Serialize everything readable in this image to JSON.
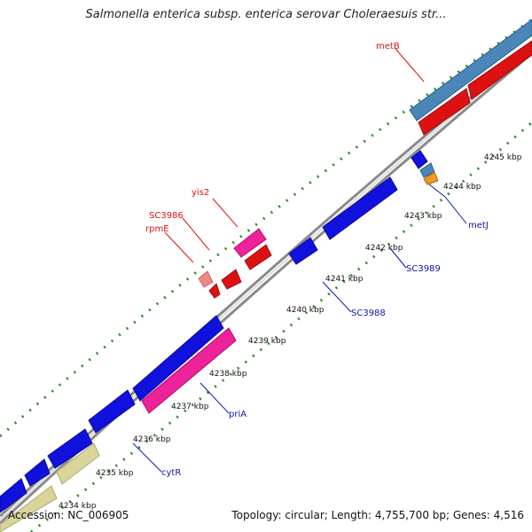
{
  "title": "Salmonella enterica subsp. enterica serovar Choleraesuis str...",
  "footer": {
    "accession": "Accession: NC_006905",
    "stats": "Topology: circular; Length: 4,755,700 bp; Genes: 4,516"
  },
  "scale_labels": [
    "4234 kbp",
    "4235 kbp",
    "4236 kbp",
    "4237 kbp",
    "4238 kbp",
    "4239 kbp",
    "4240 kbp",
    "4241 kbp",
    "4242 kbp",
    "4243 kbp",
    "4244 kbp",
    "4245 kbp"
  ],
  "gene_labels": {
    "metB": "metB",
    "yis2": "yis2",
    "SC3986": "SC3986",
    "rpmE": "rpmE",
    "metJ": "metJ",
    "SC3989": "SC3989",
    "SC3988": "SC3988",
    "priA": "priA",
    "cytR": "cytR"
  },
  "colors": {
    "forward_red": "#dd1111",
    "reverse_blue": "#1111dd",
    "pink": "#ee2299",
    "steel_blue": "#4a86b8",
    "light_red": "#ee8888",
    "khaki": "#d8d49a",
    "orange": "#ee9922",
    "backbone": "#888888",
    "tick_green": "#2a8a2a"
  }
}
